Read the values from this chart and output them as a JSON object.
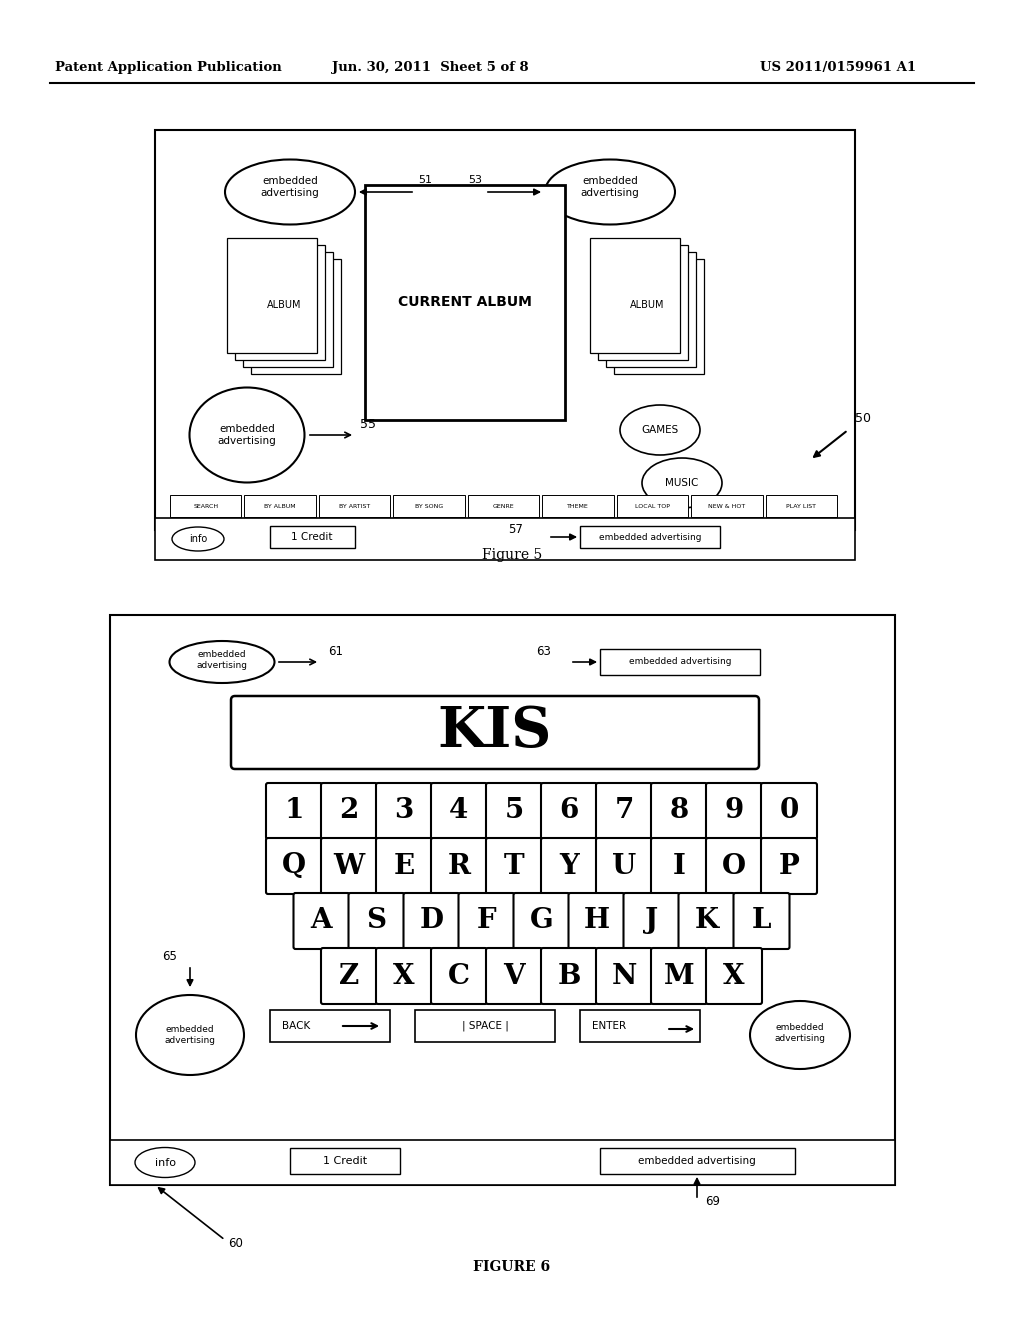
{
  "header_left": "Patent Application Publication",
  "header_mid": "Jun. 30, 2011  Sheet 5 of 8",
  "header_right": "US 2011/0159961 A1",
  "fig5_label": "Figure 5",
  "fig6_label": "FIGURE 6",
  "keyboard_row1": [
    "1",
    "2",
    "3",
    "4",
    "5",
    "6",
    "7",
    "8",
    "9",
    "0"
  ],
  "keyboard_row2": [
    "Q",
    "W",
    "E",
    "R",
    "T",
    "Y",
    "U",
    "I",
    "O",
    "P"
  ],
  "keyboard_row3": [
    "A",
    "S",
    "D",
    "F",
    "G",
    "H",
    "J",
    "K",
    "L"
  ],
  "keyboard_row4": [
    "Z",
    "X",
    "C",
    "V",
    "B",
    "N",
    "M",
    "X"
  ],
  "nav_buttons": [
    "SEARCH",
    "BY ALBUM",
    "BY ARTIST",
    "BY SONG",
    "GENRE",
    "THEME",
    "LOCAL TOP",
    "NEW & HOT",
    "PLAY LIST"
  ]
}
